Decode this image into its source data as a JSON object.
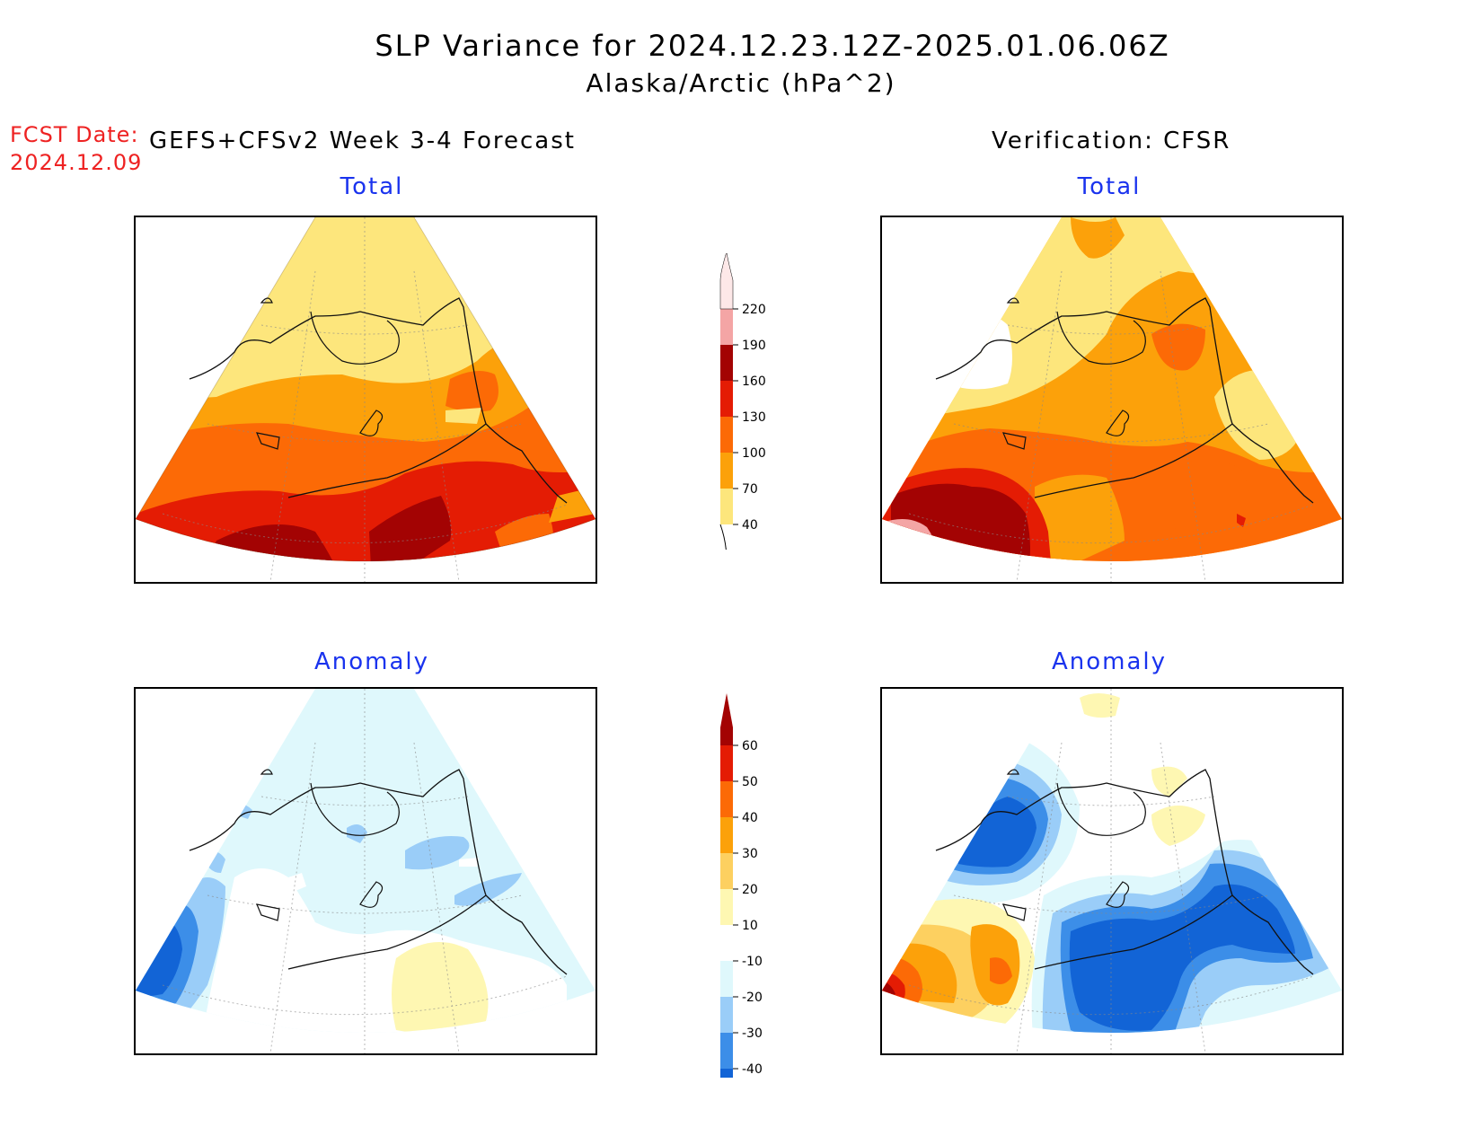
{
  "title": {
    "line1": "SLP Variance for 2024.12.23.12Z-2025.01.06.06Z",
    "line2": "Alaska/Arctic (hPa^2)"
  },
  "forecast": {
    "label": "FCST Date:",
    "date": "2024.12.09"
  },
  "headers": {
    "left": "GEFS+CFSv2 Week 3-4 Forecast",
    "right": "Verification: CFSR"
  },
  "panels": {
    "forecast_total": {
      "title": "Total"
    },
    "verification_total": {
      "title": "Total"
    },
    "forecast_anomaly": {
      "title": "Anomaly"
    },
    "verification_anomaly": {
      "title": "Anomaly"
    }
  },
  "colorbars": {
    "total": {
      "levels": [
        "40",
        "70",
        "100",
        "130",
        "160",
        "190",
        "220"
      ],
      "colors": [
        "#fde67c",
        "#fca10a",
        "#fc6a06",
        "#e41c04",
        "#a30303",
        "#f4a5a5",
        "#fde8e8"
      ]
    },
    "anomaly": {
      "levels": [
        "-40",
        "-30",
        "-20",
        "-10",
        "10",
        "20",
        "30",
        "40",
        "50",
        "60"
      ],
      "colors": [
        "#1264d6",
        "#3c8ee8",
        "#9acdf8",
        "#dff8fc",
        "#ffffff",
        "#fef7b2",
        "#fdd060",
        "#fca10a",
        "#fc6a06",
        "#e41c04",
        "#a30303"
      ]
    }
  }
}
